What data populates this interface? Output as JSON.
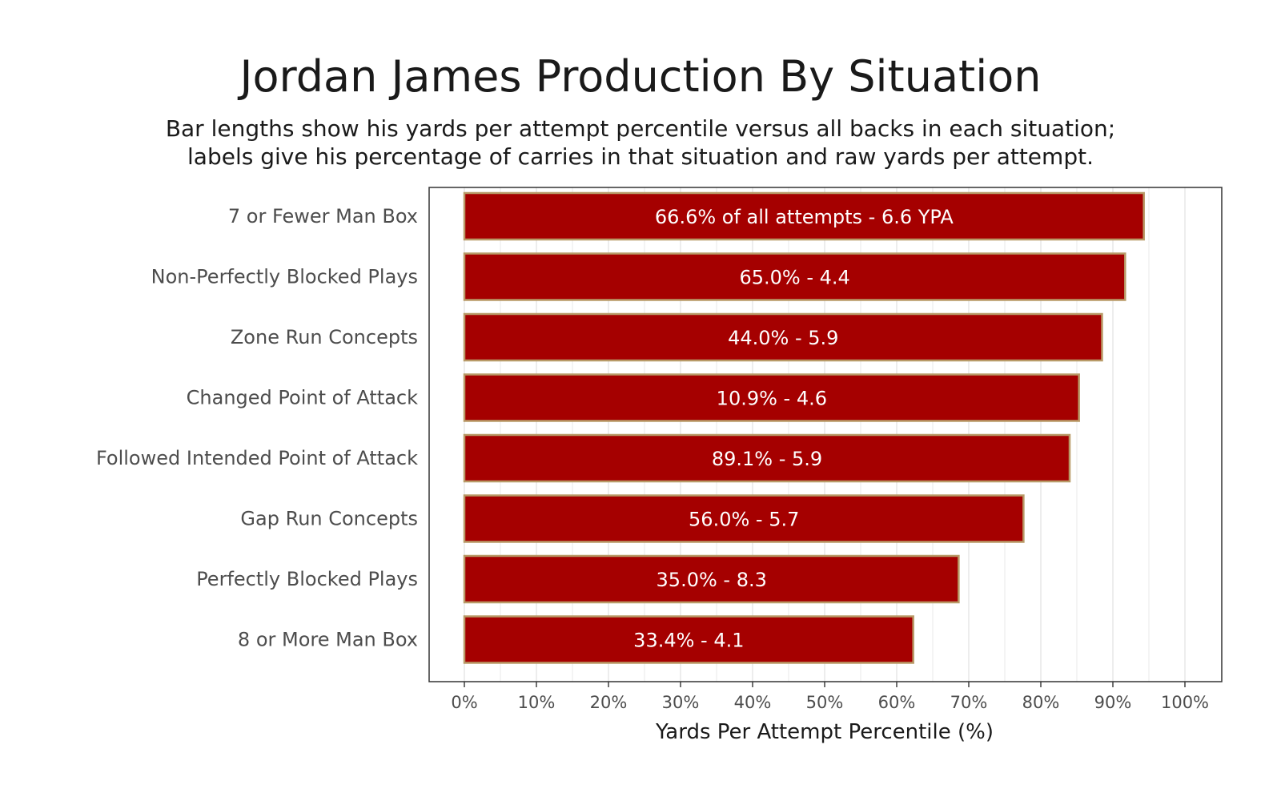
{
  "colors": {
    "bar_fill": "#a50000",
    "bar_border": "#b89a67",
    "grid": "#e5e5e5",
    "panel_border": "#333333"
  },
  "chart_data": {
    "type": "bar",
    "orientation": "horizontal",
    "title": "Jordan James Production By Situation",
    "subtitle": [
      "Bar lengths show his yards per attempt percentile versus all backs in each situation;",
      "labels give his percentage of carries in that situation and raw yards per attempt."
    ],
    "xlabel": "Yards Per Attempt Percentile (%)",
    "ylabel": "",
    "xlim": [
      0,
      100
    ],
    "x_ticks": [
      0,
      10,
      20,
      30,
      40,
      50,
      60,
      70,
      80,
      90,
      100
    ],
    "x_tick_labels": [
      "0%",
      "10%",
      "20%",
      "30%",
      "40%",
      "50%",
      "60%",
      "70%",
      "80%",
      "90%",
      "100%"
    ],
    "grid": true,
    "categories": [
      "7 or Fewer Man Box",
      "Non-Perfectly Blocked Plays",
      "Zone Run Concepts",
      "Changed Point of Attack",
      "Followed Intended Point of Attack",
      "Gap Run Concepts",
      "Perfectly Blocked Plays",
      "8 or More Man Box"
    ],
    "values": [
      94.3,
      91.7,
      88.5,
      85.3,
      84.0,
      77.6,
      68.6,
      62.3
    ],
    "data_labels": [
      "66.6% of all attempts - 6.6 YPA",
      "65.0% - 4.4",
      "44.0% - 5.9",
      "10.9% - 4.6",
      "89.1% - 5.9",
      "56.0% - 5.7",
      "35.0% - 8.3",
      "33.4% - 4.1"
    ]
  }
}
